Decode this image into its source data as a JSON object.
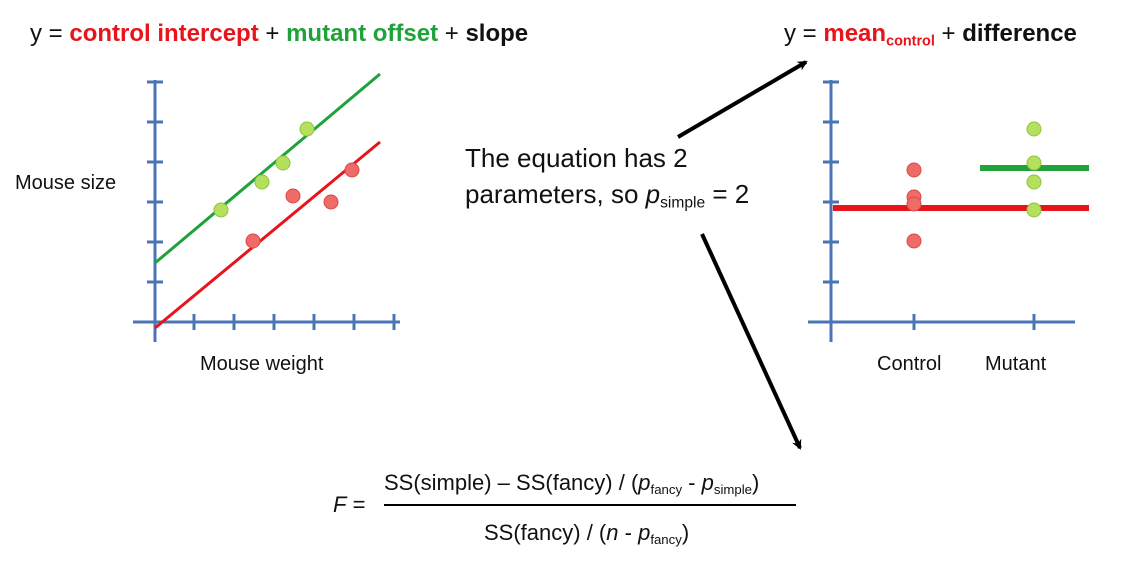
{
  "left_equation": {
    "prefix": "y = ",
    "term1": "control intercept",
    "plus1": " + ",
    "term2": "mutant offset",
    "plus2": " + ",
    "term3": "slope",
    "colors": {
      "term1": "#e8141b",
      "term2": "#1fa23a",
      "term3": "#111111"
    }
  },
  "right_equation": {
    "prefix": "y = ",
    "term1": "mean",
    "term1_sub": "control",
    "plus1": " + ",
    "term2": "difference"
  },
  "middle_text": {
    "line1": "The equation has 2",
    "line2_start": "parameters, so ",
    "p": "p",
    "p_sub": "simple",
    "line2_end": " = 2"
  },
  "left_plot": {
    "ylabel": "Mouse size",
    "xlabel": "Mouse weight"
  },
  "right_plot": {
    "categories": [
      "Control",
      "Mutant"
    ]
  },
  "formula": {
    "lhs": "F",
    "eq": " =",
    "num_part1": "SS(simple) – SS(fancy) / (",
    "num_p1": "p",
    "num_p1_sub": "fancy",
    "num_minus": " - ",
    "num_p2": "p",
    "num_p2_sub": "simple",
    "num_close": ")",
    "den_part1": "SS(fancy) / (",
    "den_n": "n",
    "den_minus": " - ",
    "den_p": "p",
    "den_p_sub": "fancy",
    "den_close": ")"
  },
  "colors": {
    "axis": "#4a74b4",
    "control_line": "#e8141b",
    "mutant_line": "#1fa23a",
    "control_point": "#ee6b68",
    "mutant_point": "#b5e05e",
    "arrow": "#000000"
  }
}
